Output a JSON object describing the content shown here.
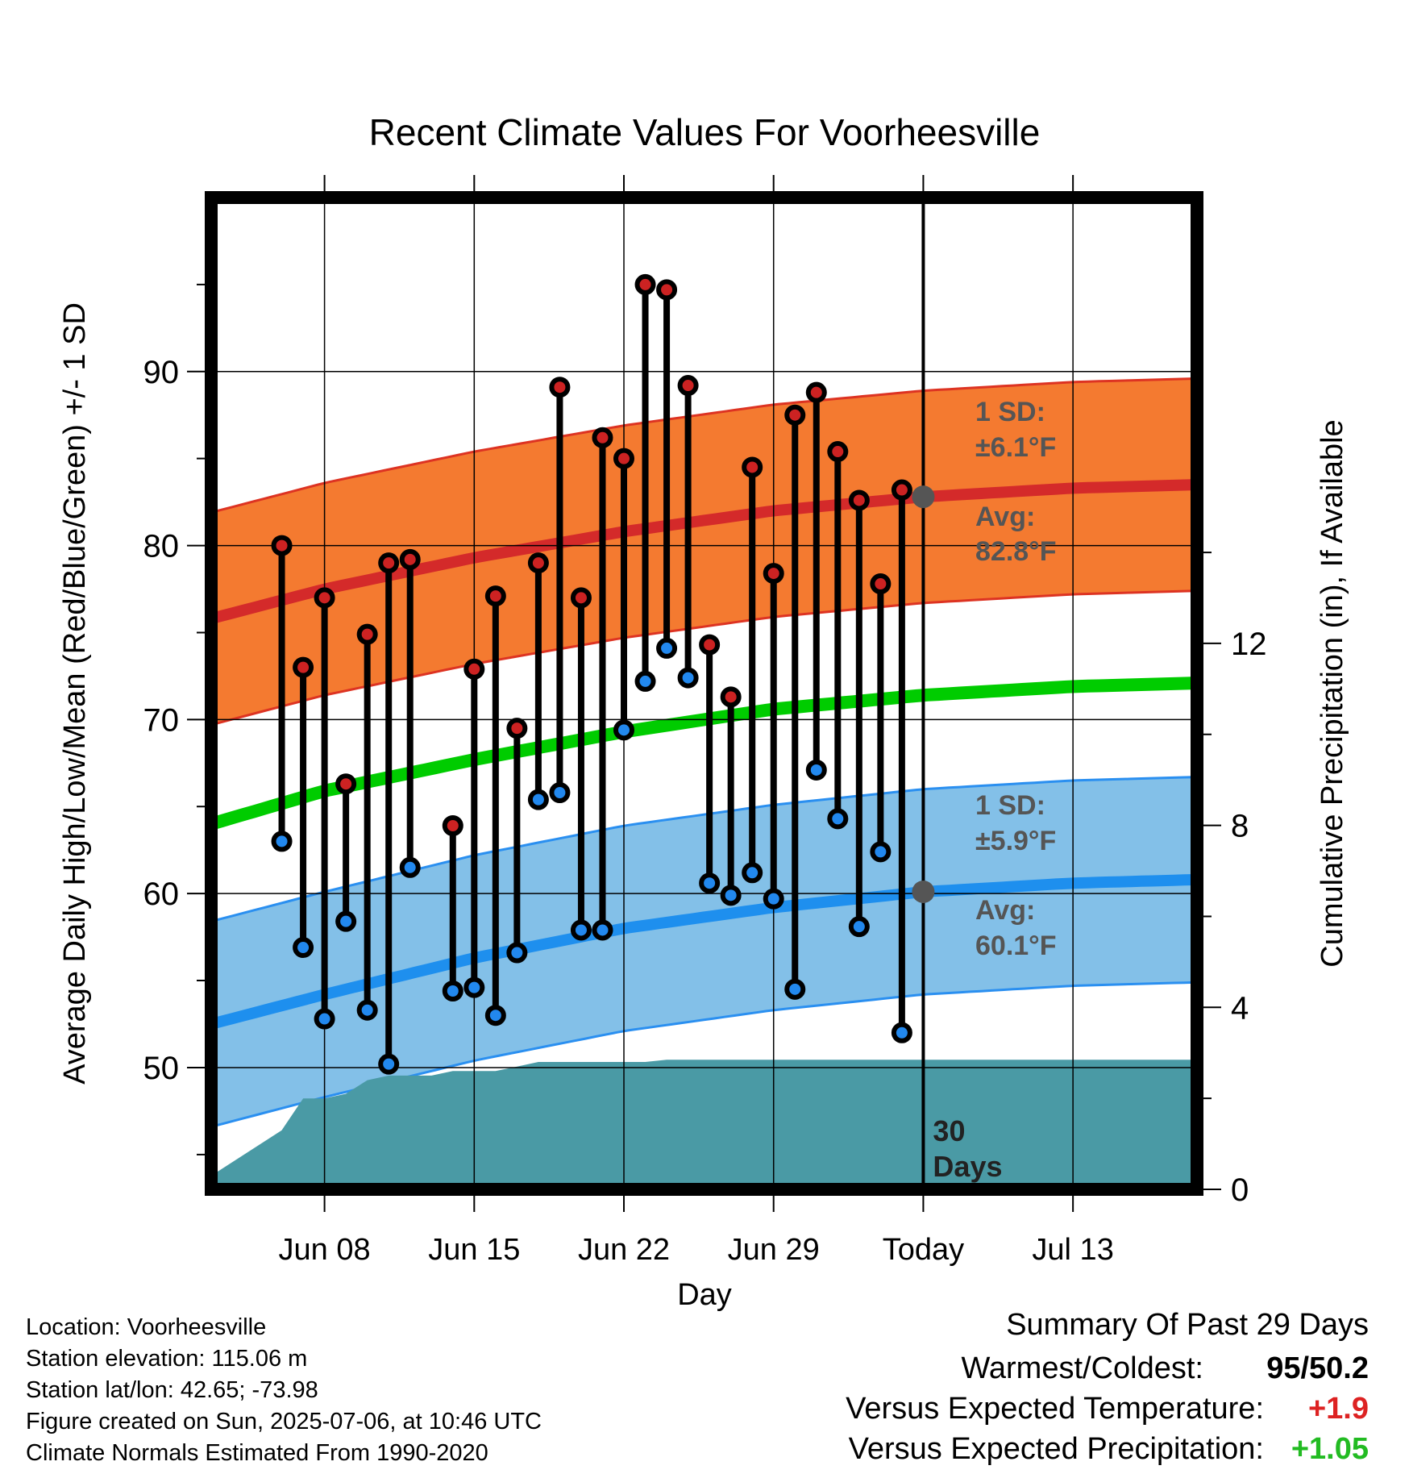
{
  "chart_data": {
    "type": "line",
    "title": "Recent Climate Values For Voorheesville",
    "xlabel": "Day",
    "ylabel": "Average Daily High/Low/Mean (Red/Blue/Green) +/- 1 SD",
    "y2label": "Cumulative Precipitation (in), If Available",
    "x_ticks": [
      "Jun 08",
      "Jun 15",
      "Jun 22",
      "Jun 29",
      "Today",
      "Jul 13"
    ],
    "y_ticks": [
      "50",
      "60",
      "70",
      "80",
      "90"
    ],
    "y2_ticks": [
      "0",
      "4",
      "8",
      "12"
    ],
    "ylim": [
      43,
      100
    ],
    "y2lim": [
      0,
      21.8
    ],
    "x_range_days": [
      -33.3,
      12.8
    ],
    "today_line_label": "30\nDays",
    "grid": true,
    "colors": {
      "high_marker": "#cc2222",
      "low_marker": "#2288ee",
      "high_band": "#f47a30",
      "high_avg_line": "#d42a2a",
      "low_band": "#83c0e8",
      "low_avg_line": "#1e8fee",
      "mean_line": "#00cc00",
      "precip_area": "#4a9aa5",
      "annotation": "#555555"
    },
    "normals": {
      "days": [
        -33.3,
        -28,
        -21,
        -14,
        -7,
        0,
        7,
        12.8
      ],
      "high_avg": [
        75.8,
        77.5,
        79.3,
        80.8,
        82,
        82.8,
        83.3,
        83.5
      ],
      "high_sd": 6.1,
      "low_avg": [
        52.5,
        54.2,
        56.3,
        58,
        59.2,
        60.1,
        60.6,
        60.8
      ],
      "low_sd": 5.9,
      "mean": [
        64,
        65.9,
        67.7,
        69.3,
        70.6,
        71.4,
        71.9,
        72.1
      ]
    },
    "daily_day_offsets": [
      -30,
      -29,
      -28,
      -27,
      -26,
      -25,
      -24,
      -23,
      -22,
      -21,
      -20,
      -19,
      -18,
      -17,
      -16,
      -15,
      -14,
      -13,
      -12,
      -11,
      -10,
      -9,
      -8,
      -7,
      -6,
      -5,
      -4,
      -3,
      -2,
      -1
    ],
    "series": [
      {
        "name": "High",
        "values": [
          80,
          73,
          77,
          66.3,
          74.9,
          79,
          79.2,
          null,
          63.9,
          72.9,
          77.1,
          69.5,
          79,
          89.1,
          77,
          86.2,
          85,
          95,
          94.7,
          89.2,
          74.3,
          71.3,
          84.5,
          78.4,
          87.5,
          88.8,
          85.4,
          82.6,
          77.8,
          83.2
        ]
      },
      {
        "name": "Low",
        "values": [
          63,
          56.9,
          52.8,
          58.4,
          53.3,
          50.2,
          61.5,
          null,
          54.4,
          54.6,
          53,
          56.6,
          65.4,
          65.8,
          57.9,
          57.9,
          69.4,
          72.2,
          74.1,
          72.4,
          60.6,
          59.9,
          61.2,
          59.7,
          54.5,
          67.1,
          64.3,
          58.1,
          62.4,
          52
        ]
      },
      {
        "name": "Cumulative Precipitation",
        "values": [
          1.3,
          2.0,
          2.0,
          2.1,
          2.4,
          2.5,
          2.5,
          2.5,
          2.6,
          2.6,
          2.6,
          2.7,
          2.8,
          2.8,
          2.8,
          2.8,
          2.8,
          2.8,
          2.85,
          2.85,
          2.85,
          2.85,
          2.85,
          2.85,
          2.85,
          2.85,
          2.85,
          2.85,
          2.85,
          2.85
        ]
      }
    ],
    "annotations": {
      "high_sd_label": "1 SD:",
      "high_sd_value": "±6.1°F",
      "high_avg_label": "Avg:",
      "high_avg_value": "82.8°F",
      "low_sd_label": "1 SD:",
      "low_sd_value": "±5.9°F",
      "low_avg_label": "Avg:",
      "low_avg_value": "60.1°F"
    }
  },
  "station_info": {
    "location": "Location: Voorheesville",
    "elevation": "Station elevation: 115.06 m",
    "latlon": "Station lat/lon: 42.65; -73.98",
    "created": "Figure created on Sun, 2025-07-06, at 10:46 UTC",
    "normals": "Climate Normals Estimated From 1990-2020"
  },
  "summary": {
    "title": "Summary Of Past 29 Days",
    "warmest_coldest_label": "Warmest/Coldest:",
    "warmest_coldest_value": "95/50.2",
    "temp_label": "Versus Expected Temperature:",
    "temp_value": "+1.9",
    "temp_color": "#dd2222",
    "precip_label": "Versus Expected Precipitation:",
    "precip_value": "+1.05",
    "precip_color": "#22bb22"
  }
}
